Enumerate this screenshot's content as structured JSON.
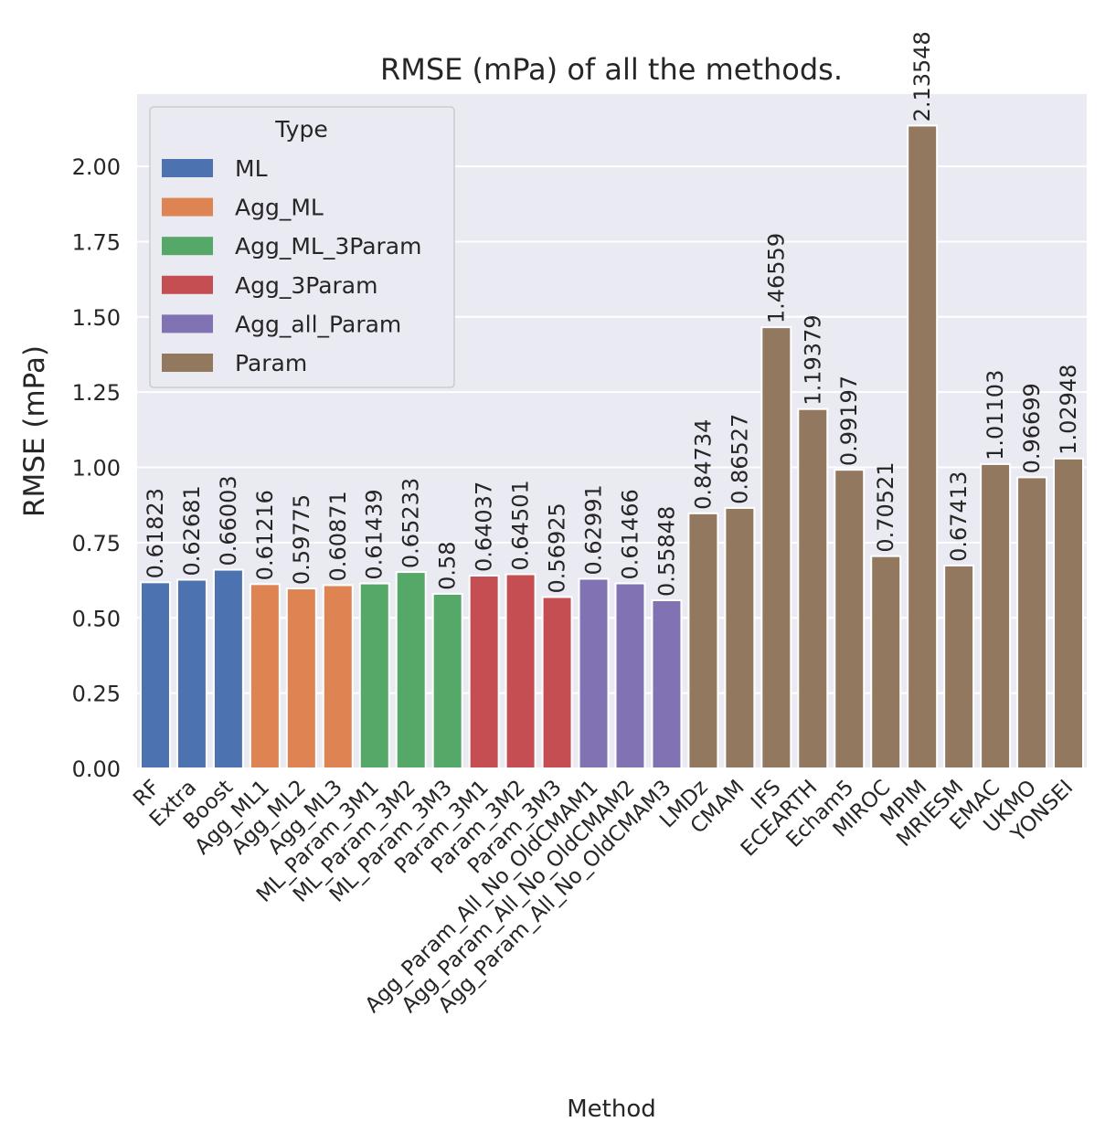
{
  "chart_data": {
    "type": "bar",
    "title": "RMSE (mPa) of all the methods.",
    "xlabel": "Method",
    "ylabel": "RMSE (mPa)",
    "ylim": [
      0,
      2.24
    ],
    "yticks": [
      "0.00",
      "0.25",
      "0.50",
      "0.75",
      "1.00",
      "1.25",
      "1.50",
      "1.75",
      "2.00"
    ],
    "grid": true,
    "legend": {
      "title": "Type",
      "position": "top-left",
      "entries": [
        {
          "name": "ML",
          "color": "#4c72b0"
        },
        {
          "name": "Agg_ML",
          "color": "#dd8452"
        },
        {
          "name": "Agg_ML_3Param",
          "color": "#55a868"
        },
        {
          "name": "Agg_3Param",
          "color": "#c44e52"
        },
        {
          "name": "Agg_all_Param",
          "color": "#8172b3"
        },
        {
          "name": "Param",
          "color": "#937860"
        }
      ]
    },
    "categories": [
      "RF",
      "Extra",
      "Boost",
      "Agg_ML1",
      "Agg_ML2",
      "Agg_ML3",
      "ML_Param_3M1",
      "ML_Param_3M2",
      "ML_Param_3M3",
      "Param_3M1",
      "Param_3M2",
      "Param_3M3",
      "Agg_Param_All_No_OldCMAM1",
      "Agg_Param_All_No_OldCMAM2",
      "Agg_Param_All_No_OldCMAM3",
      "LMDz",
      "CMAM",
      "IFS",
      "ECEARTH",
      "Echam5",
      "MIROC",
      "MPIM",
      "MRIESM",
      "EMAC",
      "UKMO",
      "YONSEI"
    ],
    "values": [
      0.61823,
      0.62681,
      0.66003,
      0.61216,
      0.59775,
      0.60871,
      0.61439,
      0.65233,
      0.58,
      0.64037,
      0.64501,
      0.56925,
      0.62991,
      0.61466,
      0.55848,
      0.84734,
      0.86527,
      1.46559,
      1.19379,
      0.99197,
      0.70521,
      2.13548,
      0.67413,
      1.01103,
      0.96699,
      1.02948
    ],
    "value_labels": [
      "0.61823",
      "0.62681",
      "0.66003",
      "0.61216",
      "0.59775",
      "0.60871",
      "0.61439",
      "0.65233",
      "0.58",
      "0.64037",
      "0.64501",
      "0.56925",
      "0.62991",
      "0.61466",
      "0.55848",
      "0.84734",
      "0.86527",
      "1.46559",
      "1.19379",
      "0.99197",
      "0.70521",
      "2.13548",
      "0.67413",
      "1.01103",
      "0.96699",
      "1.02948"
    ],
    "types": [
      "ML",
      "ML",
      "ML",
      "Agg_ML",
      "Agg_ML",
      "Agg_ML",
      "Agg_ML_3Param",
      "Agg_ML_3Param",
      "Agg_ML_3Param",
      "Agg_3Param",
      "Agg_3Param",
      "Agg_3Param",
      "Agg_all_Param",
      "Agg_all_Param",
      "Agg_all_Param",
      "Param",
      "Param",
      "Param",
      "Param",
      "Param",
      "Param",
      "Param",
      "Param",
      "Param",
      "Param",
      "Param"
    ],
    "colors": {
      "background": "#eaeaf2",
      "grid": "#ffffff",
      "bar_edge": "#ffffff"
    }
  }
}
